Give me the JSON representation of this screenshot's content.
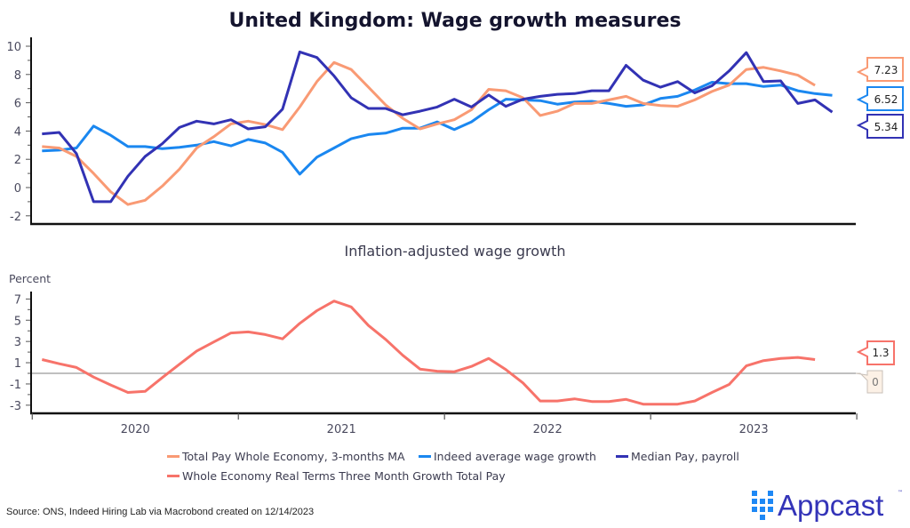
{
  "chart_data": [
    {
      "type": "line",
      "title": "United Kingdom: Wage growth measures",
      "xlabel": "",
      "ylabel": "",
      "ylim": [
        -2,
        10
      ],
      "yticks": [
        -2,
        0,
        2,
        4,
        6,
        8,
        10
      ],
      "x_start": "2020-01",
      "x_frequency": "monthly",
      "x_tick_labels": [
        "2020",
        "2021",
        "2022",
        "2023"
      ],
      "grid": false,
      "series": [
        {
          "name": "Total Pay Whole Economy, 3-months MA",
          "color": "#f99a74",
          "values": [
            2.9,
            2.8,
            2.2,
            1.0,
            -0.3,
            -1.2,
            -0.9,
            0.1,
            1.3,
            2.8,
            3.6,
            4.5,
            4.7,
            4.45,
            4.1,
            5.7,
            7.5,
            8.85,
            8.35,
            7.1,
            5.85,
            4.9,
            4.15,
            4.5,
            4.8,
            5.5,
            6.95,
            6.85,
            6.35,
            5.1,
            5.4,
            5.95,
            5.95,
            6.2,
            6.45,
            5.95,
            5.8,
            5.75,
            6.2,
            6.8,
            7.25,
            8.35,
            8.5,
            8.25,
            7.95,
            7.23
          ],
          "end_label": "7.23"
        },
        {
          "name": "Indeed average wage growth",
          "color": "#1a87f0",
          "values": [
            2.6,
            2.65,
            2.8,
            4.35,
            3.7,
            2.9,
            2.9,
            2.75,
            2.85,
            3.0,
            3.25,
            2.95,
            3.4,
            3.15,
            2.5,
            0.95,
            2.15,
            2.8,
            3.45,
            3.75,
            3.85,
            4.2,
            4.2,
            4.65,
            4.1,
            4.65,
            5.5,
            6.25,
            6.2,
            6.15,
            5.9,
            6.05,
            6.1,
            5.95,
            5.75,
            5.85,
            6.3,
            6.45,
            6.9,
            7.45,
            7.35,
            7.35,
            7.15,
            7.25,
            6.85,
            6.65,
            6.52
          ],
          "end_label": "6.52"
        },
        {
          "name": "Median Pay, payroll",
          "color": "#3232b4",
          "values": [
            3.8,
            3.9,
            2.4,
            -1.0,
            -1.0,
            0.8,
            2.2,
            3.1,
            4.25,
            4.7,
            4.5,
            4.8,
            4.15,
            4.3,
            5.55,
            9.6,
            9.2,
            7.9,
            6.35,
            5.6,
            5.6,
            5.15,
            5.4,
            5.7,
            6.25,
            5.7,
            6.55,
            5.75,
            6.25,
            6.45,
            6.6,
            6.65,
            6.85,
            6.85,
            8.65,
            7.6,
            7.1,
            7.5,
            6.7,
            7.2,
            8.25,
            9.55,
            7.5,
            7.55,
            5.95,
            6.2,
            5.34
          ],
          "end_label": "5.34"
        }
      ]
    },
    {
      "type": "line",
      "title": "Inflation-adjusted wage growth",
      "ylabel": "Percent",
      "ylim": [
        -3.5,
        7.8
      ],
      "yticks": [
        -3,
        -1,
        1,
        3,
        5,
        7
      ],
      "zero_line": 0,
      "zero_label": "0",
      "x_start": "2020-01",
      "x_frequency": "monthly",
      "x_tick_labels": [
        "2020",
        "2021",
        "2022",
        "2023"
      ],
      "grid": false,
      "series": [
        {
          "name": "Whole Economy Real Terms Three Month Growth Total Pay",
          "color": "#f7736a",
          "values": [
            1.3,
            0.9,
            0.55,
            -0.35,
            -1.1,
            -1.8,
            -1.7,
            -0.4,
            0.85,
            2.1,
            2.95,
            3.8,
            3.9,
            3.65,
            3.25,
            4.7,
            5.9,
            6.8,
            6.25,
            4.5,
            3.2,
            1.7,
            0.4,
            0.2,
            0.15,
            0.65,
            1.4,
            0.35,
            -0.9,
            -2.6,
            -2.6,
            -2.4,
            -2.65,
            -2.65,
            -2.45,
            -2.9,
            -2.9,
            -2.9,
            -2.6,
            -1.8,
            -1.05,
            0.7,
            1.2,
            1.4,
            1.5,
            1.3
          ],
          "end_label": "1.3"
        }
      ]
    }
  ],
  "legend": {
    "placement": "bottom-center",
    "items": [
      {
        "label": "Total Pay Whole Economy, 3-months MA",
        "color": "#f99a74"
      },
      {
        "label": "Indeed average wage growth",
        "color": "#1a87f0"
      },
      {
        "label": "Median Pay, payroll",
        "color": "#3232b4"
      },
      {
        "label": "Whole Economy Real Terms Three Month Growth Total Pay",
        "color": "#f7736a"
      }
    ]
  },
  "footer": {
    "source": "Source: ONS, Indeed Hiring Lab via Macrobond created on 12/14/2023",
    "logo_text": "Appcast",
    "logo_tm": "™",
    "logo_color": "#3434b8",
    "logo_mark_color": "#1e88f5"
  }
}
